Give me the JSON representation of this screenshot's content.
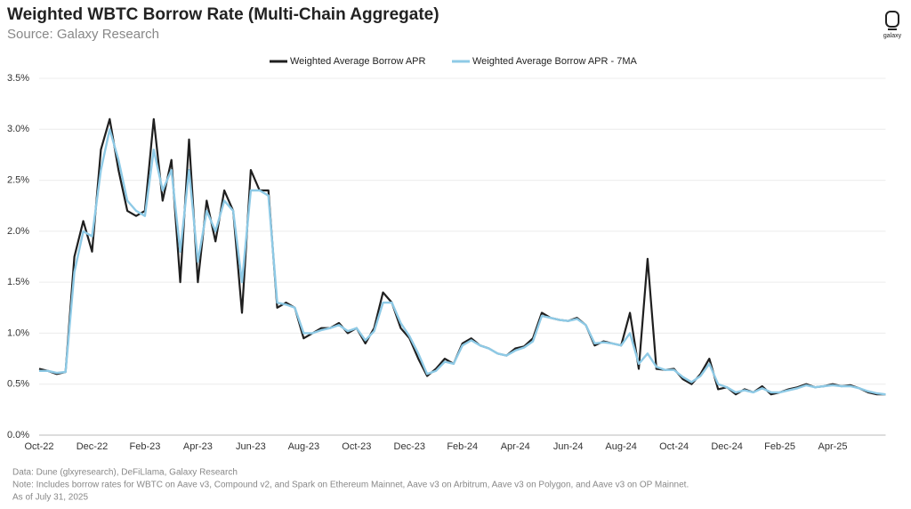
{
  "chart_data": {
    "type": "line",
    "title": "Weighted WBTC Borrow Rate (Multi-Chain Aggregate)",
    "subtitle": "Source: Galaxy Research",
    "logo": "galaxy",
    "notes": [
      "Data: Dune (glxyresearch), DeFiLlama, Galaxy Research",
      "Note: Includes borrow rates for WBTC on Aave v3, Compound v2, and Spark on Ethereum Mainnet, Aave v3 on Arbitrum, Aave v3 on Polygon, and Aave v3 on OP Mainnet.",
      "As of July 31, 2025"
    ],
    "categories": [
      "Oct-22",
      null,
      null,
      null,
      null,
      null,
      "Dec-22",
      null,
      null,
      null,
      null,
      null,
      "Feb-23",
      null,
      null,
      null,
      null,
      null,
      "Apr-23",
      null,
      null,
      null,
      null,
      null,
      "Jun-23",
      null,
      null,
      null,
      null,
      null,
      "Aug-23",
      null,
      null,
      null,
      null,
      null,
      "Oct-23",
      null,
      null,
      null,
      null,
      null,
      "Dec-23",
      null,
      null,
      null,
      null,
      null,
      "Feb-24",
      null,
      null,
      null,
      null,
      null,
      "Apr-24",
      null,
      null,
      null,
      null,
      null,
      "Jun-24",
      null,
      null,
      null,
      null,
      null,
      "Aug-24",
      null,
      null,
      null,
      null,
      null,
      "Oct-24",
      null,
      null,
      null,
      null,
      null,
      "Dec-24",
      null,
      null,
      null,
      null,
      null,
      "Feb-25",
      null,
      null,
      null,
      null,
      null,
      "Apr-25",
      null,
      null,
      null,
      null,
      null,
      null
    ],
    "series": [
      {
        "name": "Weighted Average Borrow APR",
        "color": "#1f1f1f",
        "width": 2.2,
        "values": [
          0.65,
          0.63,
          0.6,
          0.62,
          1.75,
          2.1,
          1.8,
          2.8,
          3.1,
          2.6,
          2.2,
          2.15,
          2.2,
          3.1,
          2.3,
          2.7,
          1.5,
          2.9,
          1.5,
          2.3,
          1.9,
          2.4,
          2.2,
          1.2,
          2.6,
          2.4,
          2.4,
          1.25,
          1.3,
          1.25,
          0.95,
          1.0,
          1.05,
          1.05,
          1.1,
          1.0,
          1.05,
          0.9,
          1.05,
          1.4,
          1.3,
          1.05,
          0.95,
          0.75,
          0.58,
          0.65,
          0.75,
          0.7,
          0.9,
          0.95,
          0.88,
          0.85,
          0.8,
          0.78,
          0.85,
          0.87,
          0.95,
          1.2,
          1.15,
          1.13,
          1.12,
          1.15,
          1.08,
          0.88,
          0.92,
          0.9,
          0.88,
          1.2,
          0.65,
          1.73,
          0.65,
          0.64,
          0.65,
          0.55,
          0.5,
          0.6,
          0.75,
          0.45,
          0.47,
          0.4,
          0.45,
          0.42,
          0.48,
          0.4,
          0.42,
          0.45,
          0.47,
          0.5,
          0.47,
          0.48,
          0.5,
          0.48,
          0.49,
          0.46,
          0.42,
          0.4,
          0.4
        ]
      },
      {
        "name": "Weighted Average Borrow APR - 7MA",
        "color": "#8ecae6",
        "width": 2.4,
        "values": [
          0.63,
          0.63,
          0.61,
          0.62,
          1.6,
          2.0,
          1.95,
          2.6,
          3.0,
          2.7,
          2.3,
          2.2,
          2.15,
          2.8,
          2.4,
          2.6,
          1.8,
          2.6,
          1.7,
          2.2,
          2.0,
          2.3,
          2.2,
          1.5,
          2.4,
          2.4,
          2.35,
          1.3,
          1.28,
          1.25,
          1.0,
          1.0,
          1.03,
          1.05,
          1.08,
          1.02,
          1.05,
          0.93,
          1.02,
          1.3,
          1.3,
          1.1,
          0.97,
          0.8,
          0.6,
          0.63,
          0.72,
          0.7,
          0.88,
          0.93,
          0.88,
          0.85,
          0.8,
          0.78,
          0.83,
          0.86,
          0.92,
          1.17,
          1.15,
          1.13,
          1.12,
          1.14,
          1.08,
          0.9,
          0.91,
          0.9,
          0.88,
          1.0,
          0.7,
          0.8,
          0.67,
          0.64,
          0.64,
          0.57,
          0.52,
          0.58,
          0.7,
          0.5,
          0.47,
          0.42,
          0.44,
          0.42,
          0.46,
          0.42,
          0.42,
          0.44,
          0.46,
          0.49,
          0.47,
          0.48,
          0.49,
          0.48,
          0.48,
          0.46,
          0.43,
          0.41,
          0.4
        ]
      }
    ],
    "ylim": [
      0,
      3.5
    ],
    "yticks": [
      {
        "value": 0,
        "label": "0.0%"
      },
      {
        "value": 0.5,
        "label": "0.5%"
      },
      {
        "value": 1,
        "label": "1.0%"
      },
      {
        "value": 1.5,
        "label": "1.5%"
      },
      {
        "value": 2,
        "label": "2.0%"
      },
      {
        "value": 2.5,
        "label": "2.5%"
      },
      {
        "value": 3,
        "label": "3.0%"
      },
      {
        "value": 3.5,
        "label": "3.5%"
      }
    ],
    "grid": true,
    "legend": "top"
  }
}
